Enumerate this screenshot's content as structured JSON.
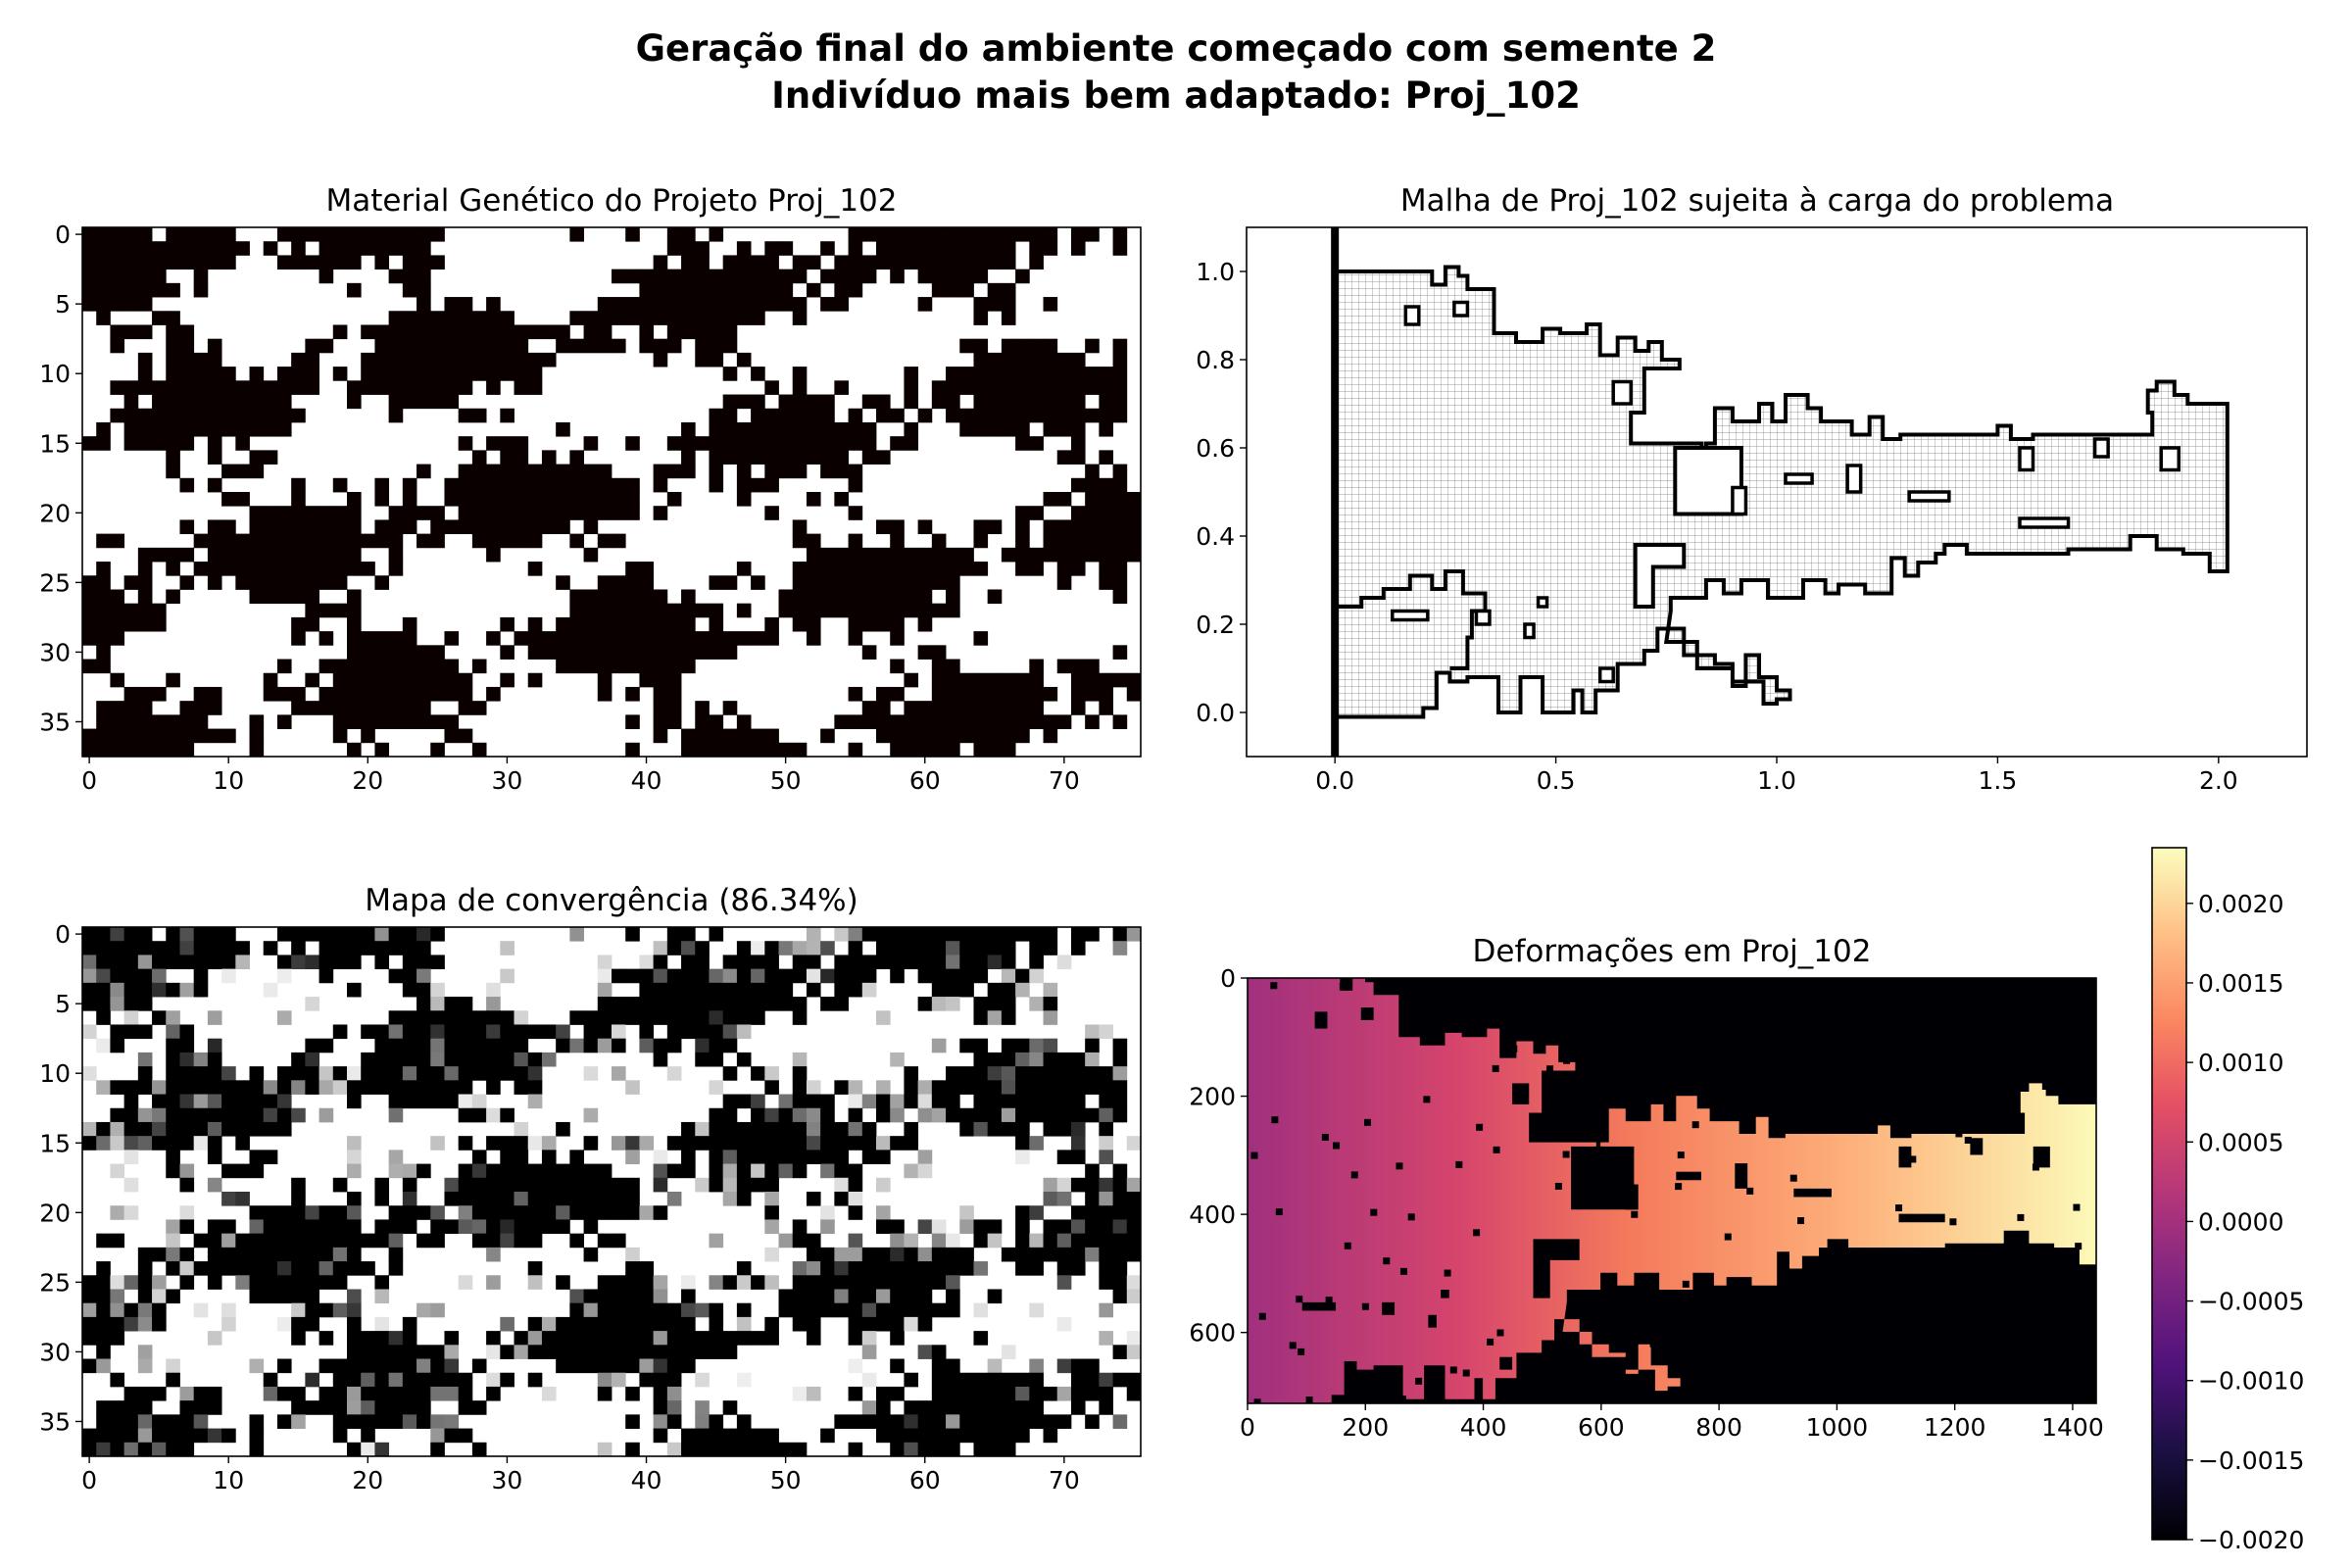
{
  "figure": {
    "title_line1": "Geração final do ambiente começado com semente 2",
    "title_line2": "Indivíduo mais bem adaptado: Proj_102"
  },
  "chart_data": [
    {
      "id": "genetic",
      "type": "heatmap",
      "title": "Material Genético do Projeto Proj_102",
      "colormap": "binary black/white",
      "rows": 38,
      "cols": 76,
      "xticks": [
        0,
        10,
        20,
        30,
        40,
        50,
        60,
        70
      ],
      "yticks": [
        0,
        5,
        10,
        15,
        20,
        25,
        30,
        35
      ],
      "colors": {
        "on": "#0a0000",
        "off": "#ffffff"
      }
    },
    {
      "id": "mesh",
      "type": "line",
      "title": "Malha de Proj_102 sujeita à carga do problema",
      "xlim": [
        -0.2,
        2.2
      ],
      "ylim": [
        -0.1,
        1.1
      ],
      "xticks": [
        "0.0",
        "0.5",
        "1.0",
        "1.5",
        "2.0"
      ],
      "yticks": [
        "0.0",
        "0.2",
        "0.4",
        "0.6",
        "0.8",
        "1.0"
      ],
      "support_x": 0.0,
      "main_outline": [
        [
          0,
          1.0
        ],
        [
          0.22,
          1.0
        ],
        [
          0.22,
          0.97
        ],
        [
          0.25,
          0.97
        ],
        [
          0.25,
          1.01
        ],
        [
          0.28,
          1.01
        ],
        [
          0.28,
          0.99
        ],
        [
          0.3,
          0.99
        ],
        [
          0.3,
          0.96
        ],
        [
          0.36,
          0.96
        ],
        [
          0.36,
          0.86
        ],
        [
          0.41,
          0.86
        ],
        [
          0.41,
          0.84
        ],
        [
          0.47,
          0.84
        ],
        [
          0.47,
          0.87
        ],
        [
          0.51,
          0.87
        ],
        [
          0.51,
          0.86
        ],
        [
          0.57,
          0.86
        ],
        [
          0.57,
          0.88
        ],
        [
          0.6,
          0.88
        ],
        [
          0.6,
          0.81
        ],
        [
          0.64,
          0.81
        ],
        [
          0.64,
          0.85
        ],
        [
          0.68,
          0.85
        ],
        [
          0.68,
          0.82
        ],
        [
          0.71,
          0.82
        ],
        [
          0.71,
          0.84
        ],
        [
          0.74,
          0.84
        ],
        [
          0.74,
          0.8
        ],
        [
          0.78,
          0.8
        ],
        [
          0.78,
          0.78
        ],
        [
          0.7,
          0.78
        ],
        [
          0.7,
          0.68
        ],
        [
          0.67,
          0.68
        ],
        [
          0.67,
          0.61
        ],
        [
          0.83,
          0.61
        ],
        [
          0.83,
          0.59
        ],
        [
          0.82,
          0.56
        ],
        [
          0.84,
          0.56
        ],
        [
          0.84,
          0.61
        ],
        [
          0.86,
          0.61
        ],
        [
          0.86,
          0.69
        ],
        [
          0.9,
          0.69
        ],
        [
          0.9,
          0.66
        ],
        [
          0.96,
          0.66
        ],
        [
          0.96,
          0.7
        ],
        [
          0.99,
          0.7
        ],
        [
          0.99,
          0.66
        ],
        [
          1.02,
          0.66
        ],
        [
          1.02,
          0.72
        ],
        [
          1.07,
          0.72
        ],
        [
          1.07,
          0.69
        ],
        [
          1.1,
          0.69
        ],
        [
          1.1,
          0.66
        ],
        [
          1.17,
          0.66
        ],
        [
          1.17,
          0.63
        ],
        [
          1.21,
          0.63
        ],
        [
          1.21,
          0.67
        ],
        [
          1.24,
          0.67
        ],
        [
          1.24,
          0.62
        ],
        [
          1.28,
          0.62
        ],
        [
          1.28,
          0.63
        ],
        [
          1.5,
          0.63
        ],
        [
          1.5,
          0.65
        ],
        [
          1.53,
          0.65
        ],
        [
          1.53,
          0.62
        ],
        [
          1.58,
          0.62
        ],
        [
          1.58,
          0.63
        ],
        [
          1.85,
          0.63
        ],
        [
          1.85,
          0.68
        ],
        [
          1.84,
          0.68
        ],
        [
          1.84,
          0.73
        ],
        [
          1.86,
          0.73
        ],
        [
          1.86,
          0.75
        ],
        [
          1.9,
          0.75
        ],
        [
          1.9,
          0.72
        ],
        [
          1.93,
          0.72
        ],
        [
          1.93,
          0.7
        ],
        [
          2.02,
          0.7
        ],
        [
          2.02,
          0.32
        ],
        [
          1.98,
          0.32
        ],
        [
          1.98,
          0.36
        ],
        [
          1.92,
          0.36
        ],
        [
          1.92,
          0.37
        ],
        [
          1.86,
          0.37
        ],
        [
          1.86,
          0.4
        ],
        [
          1.8,
          0.4
        ],
        [
          1.8,
          0.37
        ],
        [
          1.66,
          0.37
        ],
        [
          1.66,
          0.36
        ],
        [
          1.43,
          0.36
        ],
        [
          1.43,
          0.38
        ],
        [
          1.38,
          0.38
        ],
        [
          1.38,
          0.36
        ],
        [
          1.36,
          0.36
        ],
        [
          1.36,
          0.34
        ],
        [
          1.32,
          0.34
        ],
        [
          1.32,
          0.31
        ],
        [
          1.29,
          0.31
        ],
        [
          1.29,
          0.35
        ],
        [
          1.26,
          0.35
        ],
        [
          1.26,
          0.27
        ],
        [
          1.2,
          0.27
        ],
        [
          1.2,
          0.29
        ],
        [
          1.14,
          0.29
        ],
        [
          1.14,
          0.27
        ],
        [
          1.11,
          0.27
        ],
        [
          1.11,
          0.3
        ],
        [
          1.06,
          0.3
        ],
        [
          1.06,
          0.26
        ],
        [
          0.98,
          0.26
        ],
        [
          0.98,
          0.3
        ],
        [
          0.92,
          0.3
        ],
        [
          0.92,
          0.27
        ],
        [
          0.88,
          0.27
        ],
        [
          0.88,
          0.3
        ],
        [
          0.84,
          0.3
        ],
        [
          0.84,
          0.26
        ],
        [
          0.76,
          0.26
        ],
        [
          0.76,
          0.23
        ],
        [
          0.75,
          0.16
        ],
        [
          0.82,
          0.16
        ],
        [
          0.82,
          0.1
        ],
        [
          0.9,
          0.1
        ],
        [
          0.9,
          0.06
        ],
        [
          0.93,
          0.06
        ],
        [
          0.93,
          0.13
        ],
        [
          0.96,
          0.13
        ],
        [
          0.96,
          0.08
        ],
        [
          1.0,
          0.08
        ],
        [
          1.0,
          0.05
        ],
        [
          1.03,
          0.05
        ],
        [
          1.03,
          0.03
        ],
        [
          1.0,
          0.03
        ],
        [
          1.0,
          0.02
        ],
        [
          0.97,
          0.02
        ],
        [
          0.97,
          0.07
        ],
        [
          0.9,
          0.07
        ],
        [
          0.9,
          0.11
        ],
        [
          0.86,
          0.11
        ],
        [
          0.86,
          0.13
        ],
        [
          0.79,
          0.13
        ],
        [
          0.79,
          0.19
        ],
        [
          0.73,
          0.19
        ],
        [
          0.73,
          0.14
        ],
        [
          0.7,
          0.14
        ],
        [
          0.7,
          0.11
        ],
        [
          0.64,
          0.11
        ],
        [
          0.64,
          0.05
        ],
        [
          0.59,
          0.05
        ],
        [
          0.59,
          0.0
        ],
        [
          0.56,
          0.0
        ],
        [
          0.56,
          0.05
        ],
        [
          0.54,
          0.05
        ],
        [
          0.54,
          0.0
        ],
        [
          0.47,
          0.0
        ],
        [
          0.47,
          0.08
        ],
        [
          0.42,
          0.08
        ],
        [
          0.42,
          0.0
        ],
        [
          0.37,
          0.0
        ],
        [
          0.37,
          0.08
        ],
        [
          0.3,
          0.08
        ],
        [
          0.3,
          0.07
        ],
        [
          0.26,
          0.07
        ],
        [
          0.26,
          0.09
        ],
        [
          0.23,
          0.09
        ],
        [
          0.23,
          0.01
        ],
        [
          0.2,
          0.01
        ],
        [
          0.2,
          -0.01
        ],
        [
          0,
          -0.01
        ]
      ],
      "holes": [
        [
          [
            0.77,
            0.6
          ],
          [
            0.92,
            0.6
          ],
          [
            0.92,
            0.45
          ],
          [
            0.77,
            0.45
          ]
        ],
        [
          [
            0.68,
            0.38
          ],
          [
            0.79,
            0.38
          ],
          [
            0.79,
            0.33
          ],
          [
            0.72,
            0.33
          ],
          [
            0.72,
            0.24
          ],
          [
            0.68,
            0.24
          ]
        ]
      ],
      "inner_blobs": [
        [
          0.16,
          0.88,
          0.03,
          0.04
        ],
        [
          0.27,
          0.9,
          0.03,
          0.03
        ],
        [
          0.63,
          0.7,
          0.04,
          0.05
        ],
        [
          1.16,
          0.5,
          0.03,
          0.06
        ],
        [
          1.55,
          0.55,
          0.03,
          0.05
        ],
        [
          1.72,
          0.58,
          0.03,
          0.04
        ],
        [
          1.87,
          0.55,
          0.04,
          0.05
        ],
        [
          1.55,
          0.42,
          0.11,
          0.02
        ],
        [
          1.3,
          0.48,
          0.09,
          0.02
        ],
        [
          1.02,
          0.52,
          0.06,
          0.02
        ],
        [
          0.9,
          0.45,
          0.03,
          0.06
        ],
        [
          0.32,
          0.2,
          0.03,
          0.03
        ],
        [
          0.46,
          0.24,
          0.02,
          0.02
        ],
        [
          0.6,
          0.07,
          0.03,
          0.03
        ],
        [
          0.43,
          0.17,
          0.02,
          0.03
        ],
        [
          0.13,
          0.21,
          0.08,
          0.02
        ]
      ],
      "lower_arm_outline": [
        [
          0,
          0.24
        ],
        [
          0.06,
          0.24
        ],
        [
          0.06,
          0.26
        ],
        [
          0.11,
          0.26
        ],
        [
          0.11,
          0.28
        ],
        [
          0.17,
          0.28
        ],
        [
          0.17,
          0.31
        ],
        [
          0.22,
          0.31
        ],
        [
          0.22,
          0.28
        ],
        [
          0.25,
          0.28
        ],
        [
          0.25,
          0.32
        ],
        [
          0.29,
          0.32
        ],
        [
          0.29,
          0.27
        ],
        [
          0.34,
          0.27
        ],
        [
          0.34,
          0.23
        ],
        [
          0.31,
          0.23
        ],
        [
          0.31,
          0.17
        ],
        [
          0.3,
          0.17
        ],
        [
          0.3,
          0.1
        ],
        [
          0.26,
          0.1
        ]
      ]
    },
    {
      "id": "convergence",
      "type": "heatmap",
      "title": "Mapa de convergência (86.34%)",
      "colormap": "gray",
      "rows": 38,
      "cols": 76,
      "xticks": [
        0,
        10,
        20,
        30,
        40,
        50,
        60,
        70
      ],
      "yticks": [
        0,
        5,
        10,
        15,
        20,
        25,
        30,
        35
      ]
    },
    {
      "id": "deformation",
      "type": "heatmap",
      "title": "Deformações em Proj_102",
      "colormap": "magma",
      "xlim": [
        0,
        1440
      ],
      "ylim": [
        720,
        0
      ],
      "xticks": [
        0,
        200,
        400,
        600,
        800,
        1000,
        1200,
        1400
      ],
      "yticks": [
        0,
        200,
        400,
        600
      ],
      "colorbar": {
        "min": -0.002,
        "max": 0.00235,
        "ticks": [
          "0.0020",
          "0.0015",
          "0.0010",
          "0.0005",
          "0.0000",
          "−0.0005",
          "−0.0010",
          "−0.0015",
          "−0.0020"
        ],
        "tick_values": [
          0.002,
          0.0015,
          0.001,
          0.0005,
          0,
          -0.0005,
          -0.001,
          -0.0015,
          -0.002
        ]
      }
    }
  ]
}
